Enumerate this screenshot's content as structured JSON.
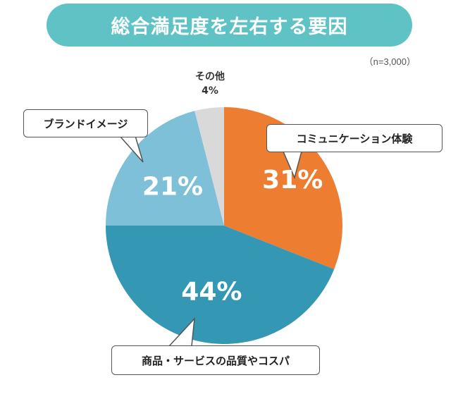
{
  "title": "総合満足度を左右する要因",
  "sample_note": "（n=3,000）",
  "colors": {
    "banner": "#5fc3c6",
    "cx": "#ed7d31",
    "product": "#3497b3",
    "brand": "#7ec0d8",
    "other": "#d9d9d9"
  },
  "chart_data": {
    "type": "pie",
    "start": "12 o'clock",
    "direction": "clockwise",
    "slices": [
      {
        "label": "コミュニケーション体験",
        "value": 31,
        "value_label": "31%",
        "color": "#ed7d31"
      },
      {
        "label": "商品・サービスの品質やコスパ",
        "value": 44,
        "value_label": "44%",
        "color": "#3497b3"
      },
      {
        "label": "ブランドイメージ",
        "value": 21,
        "value_label": "21%",
        "color": "#7ec0d8"
      },
      {
        "label": "その他",
        "value": 4,
        "value_label": "4%",
        "color": "#d9d9d9"
      }
    ]
  }
}
